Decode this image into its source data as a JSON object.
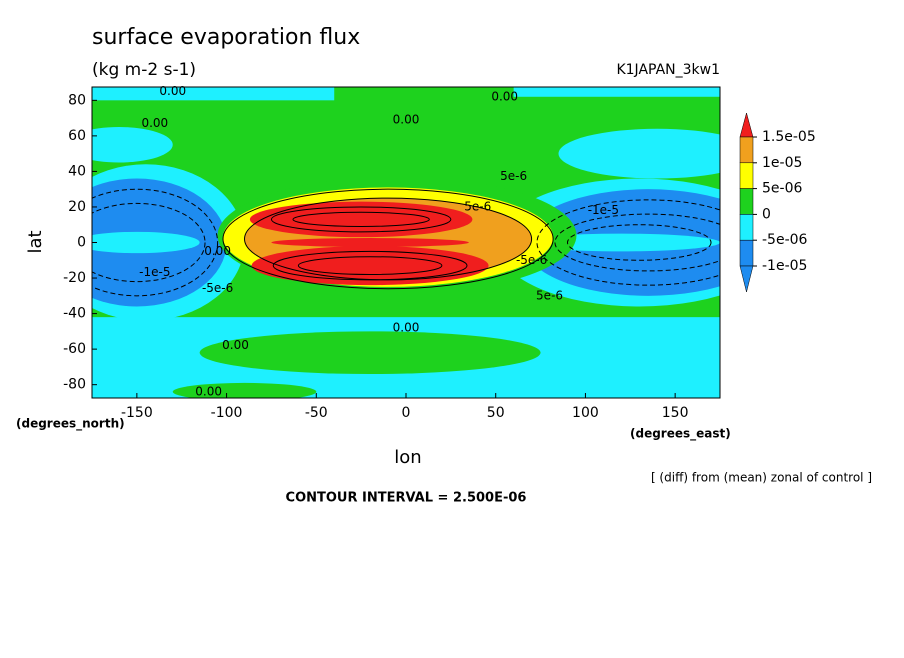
{
  "chart_data": {
    "type": "contour",
    "title": "surface evaporation flux",
    "subtitle": "(kg m-2 s-1)",
    "run_label": "K1JAPAN_3kw1",
    "xlabel": "lon",
    "ylabel": "lat",
    "x_unit": "(degrees_east)",
    "y_unit": "(degrees_north)",
    "note": "[ (diff) from (mean) zonal of control ]",
    "footer": "CONTOUR INTERVAL = 2.500E-06",
    "xlim": [
      -175,
      175
    ],
    "ylim": [
      -87.5,
      87.5
    ],
    "xticks": [
      -150,
      -100,
      -50,
      0,
      50,
      100,
      150
    ],
    "yticks": [
      80,
      60,
      40,
      20,
      0,
      -20,
      -40,
      -60,
      -80
    ],
    "colorbar": {
      "levels": [
        {
          "value": 1.5e-05,
          "label": "1.5e-05"
        },
        {
          "value": 1e-05,
          "label": "1e-05"
        },
        {
          "value": 5e-06,
          "label": "5e-06"
        },
        0,
        {
          "value": -5e-06,
          "label": "-5e-06"
        },
        {
          "value": -1e-05,
          "label": "-1e-05"
        }
      ],
      "colors": [
        "#f01e1e",
        "#f0a01e",
        "#ffff00",
        "#1ed21e",
        "#1ef0ff",
        "#1e8cf0",
        "#1e8cf0"
      ]
    },
    "annotations": [
      "0.00",
      "0.00",
      "0.00",
      "0.00",
      "0.00",
      "0.00",
      "0.00",
      "0.00",
      "5e-6",
      "5e-6",
      "-5e-6",
      "-1e-5",
      "-5e-6",
      "-1e-5",
      "5e-6"
    ]
  }
}
